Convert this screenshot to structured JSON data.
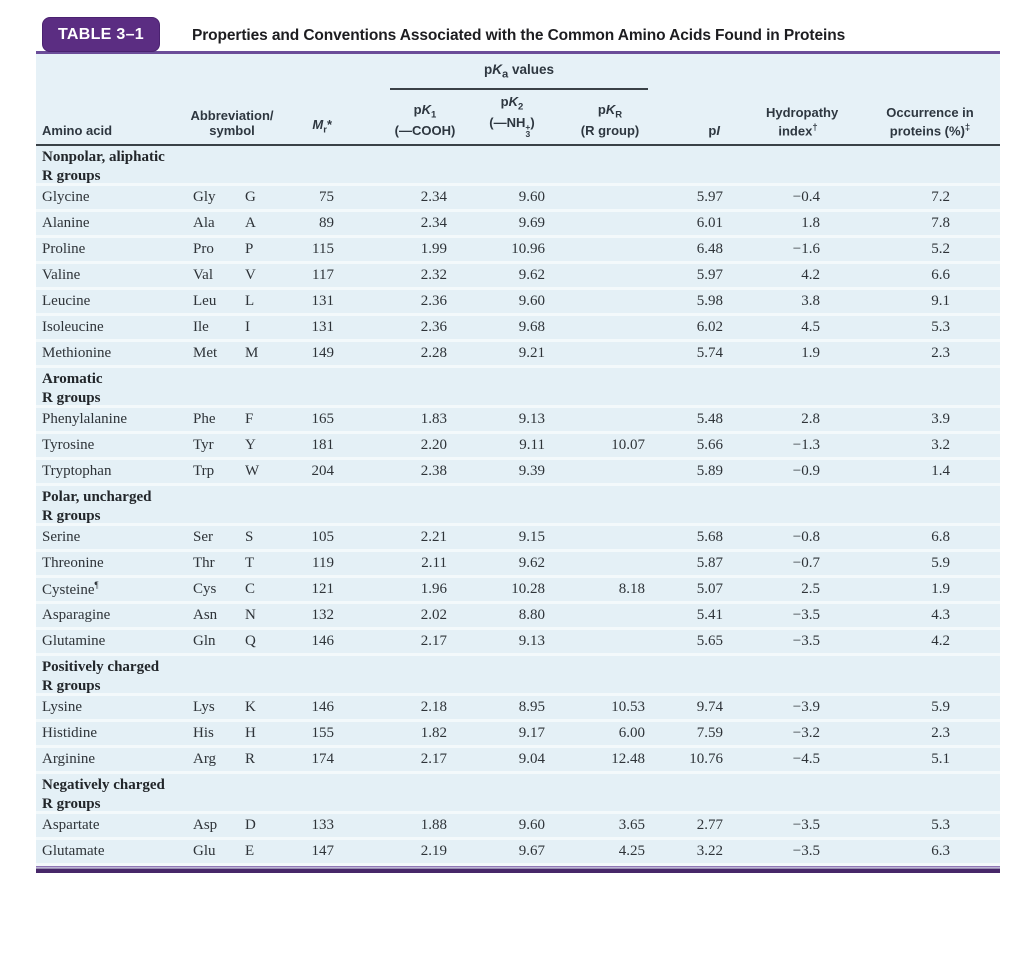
{
  "header": {
    "badge": "TABLE 3–1",
    "title": "Properties and Conventions Associated with the Common Amino Acids Found in Proteins"
  },
  "table": {
    "columns": {
      "amino_acid": "Amino acid",
      "abbreviation": {
        "line1": "Abbreviation/",
        "line2": "symbol"
      },
      "mr": {
        "base": "M",
        "sub": "r",
        "mark": "*"
      },
      "pka_group": {
        "p": "p",
        "k": "K",
        "sub": "a",
        "rest": " values"
      },
      "pk1": {
        "p": "p",
        "k": "K",
        "sub": "1",
        "formula": "(—COOH)"
      },
      "pk2": {
        "p": "p",
        "k": "K",
        "sub": "2",
        "formula_pre": "(—NH",
        "formula_sup": "+",
        "formula_sub": "3",
        "formula_post": ")"
      },
      "pkr": {
        "p": "p",
        "k": "K",
        "sub": "R",
        "formula": "(R group)"
      },
      "pi": {
        "p": "p",
        "i": "I"
      },
      "hydropathy": {
        "line1": "Hydropathy",
        "line2": "index",
        "mark": "†"
      },
      "occurrence": {
        "line1": "Occurrence in",
        "line2": "proteins (%)",
        "mark": "‡"
      }
    },
    "sections": [
      {
        "header": {
          "line1": "Nonpolar, aliphatic",
          "line2": "R groups"
        },
        "rows": [
          {
            "name": "Glycine",
            "abbr3": "Gly",
            "abbr1": "G",
            "mr": "75",
            "pk1": "2.34",
            "pk2": "9.60",
            "pkr": "",
            "pi": "5.97",
            "hydropathy": "−0.4",
            "occurrence": "7.2"
          },
          {
            "name": "Alanine",
            "abbr3": "Ala",
            "abbr1": "A",
            "mr": "89",
            "pk1": "2.34",
            "pk2": "9.69",
            "pkr": "",
            "pi": "6.01",
            "hydropathy": "1.8",
            "occurrence": "7.8"
          },
          {
            "name": "Proline",
            "abbr3": "Pro",
            "abbr1": "P",
            "mr": "115",
            "pk1": "1.99",
            "pk2": "10.96",
            "pkr": "",
            "pi": "6.48",
            "hydropathy": "−1.6",
            "occurrence": "5.2"
          },
          {
            "name": "Valine",
            "abbr3": "Val",
            "abbr1": "V",
            "mr": "117",
            "pk1": "2.32",
            "pk2": "9.62",
            "pkr": "",
            "pi": "5.97",
            "hydropathy": "4.2",
            "occurrence": "6.6"
          },
          {
            "name": "Leucine",
            "abbr3": "Leu",
            "abbr1": "L",
            "mr": "131",
            "pk1": "2.36",
            "pk2": "9.60",
            "pkr": "",
            "pi": "5.98",
            "hydropathy": "3.8",
            "occurrence": "9.1"
          },
          {
            "name": "Isoleucine",
            "abbr3": "Ile",
            "abbr1": "I",
            "mr": "131",
            "pk1": "2.36",
            "pk2": "9.68",
            "pkr": "",
            "pi": "6.02",
            "hydropathy": "4.5",
            "occurrence": "5.3"
          },
          {
            "name": "Methionine",
            "abbr3": "Met",
            "abbr1": "M",
            "mr": "149",
            "pk1": "2.28",
            "pk2": "9.21",
            "pkr": "",
            "pi": "5.74",
            "hydropathy": "1.9",
            "occurrence": "2.3"
          }
        ]
      },
      {
        "header": {
          "line1": "Aromatic",
          "line2": "R groups"
        },
        "rows": [
          {
            "name": "Phenylalanine",
            "abbr3": "Phe",
            "abbr1": "F",
            "mr": "165",
            "pk1": "1.83",
            "pk2": "9.13",
            "pkr": "",
            "pi": "5.48",
            "hydropathy": "2.8",
            "occurrence": "3.9"
          },
          {
            "name": "Tyrosine",
            "abbr3": "Tyr",
            "abbr1": "Y",
            "mr": "181",
            "pk1": "2.20",
            "pk2": "9.11",
            "pkr": "10.07",
            "pi": "5.66",
            "hydropathy": "−1.3",
            "occurrence": "3.2"
          },
          {
            "name": "Tryptophan",
            "abbr3": "Trp",
            "abbr1": "W",
            "mr": "204",
            "pk1": "2.38",
            "pk2": "9.39",
            "pkr": "",
            "pi": "5.89",
            "hydropathy": "−0.9",
            "occurrence": "1.4"
          }
        ]
      },
      {
        "header": {
          "line1": "Polar, uncharged",
          "line2": "R groups"
        },
        "rows": [
          {
            "name": "Serine",
            "abbr3": "Ser",
            "abbr1": "S",
            "mr": "105",
            "pk1": "2.21",
            "pk2": "9.15",
            "pkr": "",
            "pi": "5.68",
            "hydropathy": "−0.8",
            "occurrence": "6.8"
          },
          {
            "name": "Threonine",
            "abbr3": "Thr",
            "abbr1": "T",
            "mr": "119",
            "pk1": "2.11",
            "pk2": "9.62",
            "pkr": "",
            "pi": "5.87",
            "hydropathy": "−0.7",
            "occurrence": "5.9"
          },
          {
            "name": "Cysteine",
            "mark": "¶",
            "abbr3": "Cys",
            "abbr1": "C",
            "mr": "121",
            "pk1": "1.96",
            "pk2": "10.28",
            "pkr": "8.18",
            "pi": "5.07",
            "hydropathy": "2.5",
            "occurrence": "1.9"
          },
          {
            "name": "Asparagine",
            "abbr3": "Asn",
            "abbr1": "N",
            "mr": "132",
            "pk1": "2.02",
            "pk2": "8.80",
            "pkr": "",
            "pi": "5.41",
            "hydropathy": "−3.5",
            "occurrence": "4.3"
          },
          {
            "name": "Glutamine",
            "abbr3": "Gln",
            "abbr1": "Q",
            "mr": "146",
            "pk1": "2.17",
            "pk2": "9.13",
            "pkr": "",
            "pi": "5.65",
            "hydropathy": "−3.5",
            "occurrence": "4.2"
          }
        ]
      },
      {
        "header": {
          "line1": "Positively charged",
          "line2": "R groups"
        },
        "rows": [
          {
            "name": "Lysine",
            "abbr3": "Lys",
            "abbr1": "K",
            "mr": "146",
            "pk1": "2.18",
            "pk2": "8.95",
            "pkr": "10.53",
            "pi": "9.74",
            "hydropathy": "−3.9",
            "occurrence": "5.9"
          },
          {
            "name": "Histidine",
            "abbr3": "His",
            "abbr1": "H",
            "mr": "155",
            "pk1": "1.82",
            "pk2": "9.17",
            "pkr": "6.00",
            "pi": "7.59",
            "hydropathy": "−3.2",
            "occurrence": "2.3"
          },
          {
            "name": "Arginine",
            "abbr3": "Arg",
            "abbr1": "R",
            "mr": "174",
            "pk1": "2.17",
            "pk2": "9.04",
            "pkr": "12.48",
            "pi": "10.76",
            "hydropathy": "−4.5",
            "occurrence": "5.1"
          }
        ]
      },
      {
        "header": {
          "line1": "Negatively charged",
          "line2": "R groups"
        },
        "rows": [
          {
            "name": "Aspartate",
            "abbr3": "Asp",
            "abbr1": "D",
            "mr": "133",
            "pk1": "1.88",
            "pk2": "9.60",
            "pkr": "3.65",
            "pi": "2.77",
            "hydropathy": "−3.5",
            "occurrence": "5.3"
          },
          {
            "name": "Glutamate",
            "abbr3": "Glu",
            "abbr1": "E",
            "mr": "147",
            "pk1": "2.19",
            "pk2": "9.67",
            "pkr": "4.25",
            "pi": "3.22",
            "hydropathy": "−3.5",
            "occurrence": "6.3"
          }
        ]
      }
    ]
  },
  "colors": {
    "badge_purple": "#5b2d82",
    "rule_purple": "#6b4d99",
    "bottom_rule_purple": "#472769",
    "body_blue": "#e4f0f6",
    "row_separator": "#f3f9fb",
    "dark_rule": "#3a4147"
  }
}
